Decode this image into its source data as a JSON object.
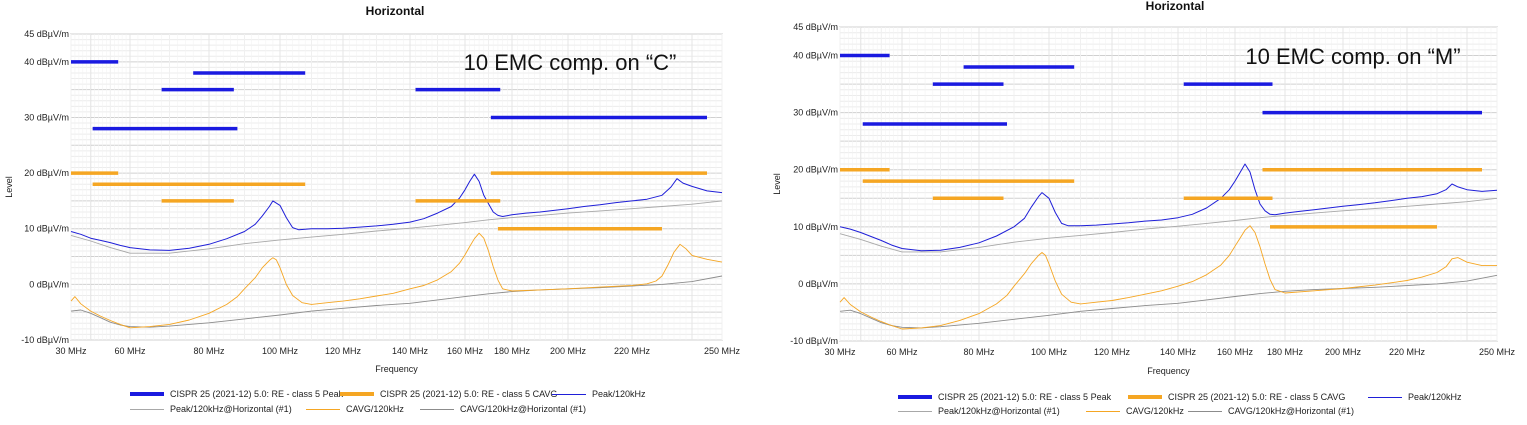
{
  "chart_data": [
    {
      "type": "line",
      "title": "Horizontal",
      "annotation": "10 EMC comp. on “C”",
      "xlabel": "Frequency",
      "ylabel": "Level",
      "xlim": [
        30,
        250
      ],
      "ylim": [
        -10,
        45
      ],
      "x_ticks": [
        "30 MHz",
        "60 MHz",
        "80 MHz",
        "100 MHz",
        "120 MHz",
        "140 MHz",
        "160 MHz",
        "180 MHz",
        "200 MHz",
        "220 MHz",
        "250 MHz"
      ],
      "y_ticks": [
        "45 dBµV/m",
        "40 dBµV/m",
        "30 dBµV/m",
        "20 dBµV/m",
        "10 dBµV/m",
        "0 dBµV/m",
        "-10 dBµV/m"
      ],
      "grid": true,
      "legend_position": "bottom",
      "limit_lines": {
        "peak": [
          {
            "x": [
              30,
              54
            ],
            "y": 40
          },
          {
            "x": [
              41,
              88
            ],
            "y": 28
          },
          {
            "x": [
              68,
              87
            ],
            "y": 35
          },
          {
            "x": [
              76,
              108
            ],
            "y": 38
          },
          {
            "x": [
              142,
              175
            ],
            "y": 35
          },
          {
            "x": [
              171,
              245
            ],
            "y": 30
          }
        ],
        "cavg": [
          {
            "x": [
              30,
              54
            ],
            "y": 20
          },
          {
            "x": [
              41,
              108
            ],
            "y": 18
          },
          {
            "x": [
              68,
              87
            ],
            "y": 15
          },
          {
            "x": [
              142,
              175
            ],
            "y": 15
          },
          {
            "x": [
              171,
              245
            ],
            "y": 20
          },
          {
            "x": [
              174,
              230
            ],
            "y": 10
          }
        ]
      },
      "series": [
        {
          "name": "Peak/120kHz",
          "color": "#1f1fd8",
          "x": [
            30,
            35,
            40,
            45,
            50,
            55,
            60,
            65,
            70,
            75,
            80,
            85,
            90,
            93,
            95,
            97,
            98,
            100,
            102,
            104,
            106,
            110,
            115,
            120,
            125,
            130,
            135,
            140,
            145,
            150,
            155,
            158,
            160,
            162,
            164,
            166,
            168,
            170,
            172,
            174,
            176,
            180,
            185,
            190,
            195,
            200,
            205,
            210,
            215,
            220,
            225,
            230,
            233,
            235,
            237,
            240,
            245,
            250
          ],
          "y": [
            9.5,
            9,
            8.3,
            7.9,
            7.5,
            7,
            6.6,
            6.2,
            6.1,
            6.5,
            7.2,
            8.2,
            9.5,
            10.8,
            12.3,
            14,
            15,
            14.2,
            12,
            10.2,
            9.8,
            10,
            10,
            10.1,
            10.3,
            10.5,
            10.8,
            11.2,
            11.8,
            12.8,
            14,
            15.5,
            17,
            18.5,
            19.8,
            18.5,
            16,
            14.5,
            13,
            12.4,
            12.2,
            12.5,
            12.8,
            13,
            13.3,
            13.6,
            14,
            14.3,
            14.7,
            15,
            15.3,
            16,
            17.5,
            19,
            18.2,
            17.6,
            16.8,
            16.5
          ]
        },
        {
          "name": "Peak/120kHz@Horizontal (#1)",
          "color": "#a8a8a8",
          "x": [
            30,
            40,
            50,
            60,
            70,
            80,
            90,
            100,
            110,
            120,
            130,
            140,
            150,
            160,
            170,
            180,
            190,
            200,
            210,
            220,
            230,
            240,
            250
          ],
          "y": [
            8.8,
            7.8,
            6.6,
            5.6,
            5.6,
            6.4,
            7.3,
            8,
            8.5,
            9,
            9.6,
            10.1,
            10.6,
            11.1,
            11.6,
            12,
            12.4,
            12.8,
            13.2,
            13.6,
            14,
            14.4,
            15
          ]
        },
        {
          "name": "CAVG/120kHz",
          "color": "#f5a623",
          "x": [
            30,
            32,
            35,
            40,
            45,
            50,
            55,
            60,
            65,
            70,
            75,
            80,
            85,
            88,
            90,
            93,
            95,
            97,
            98,
            99,
            100,
            102,
            104,
            107,
            110,
            115,
            120,
            125,
            130,
            135,
            140,
            145,
            150,
            155,
            158,
            160,
            162,
            164,
            166,
            168,
            170,
            172,
            174,
            176,
            180,
            190,
            200,
            210,
            220,
            225,
            228,
            230,
            232,
            234,
            236,
            238,
            240,
            245,
            250
          ],
          "y": [
            -3,
            -2.2,
            -3.5,
            -4.8,
            -5.7,
            -6.5,
            -7.2,
            -7.8,
            -7.6,
            -7.2,
            -6.4,
            -5.2,
            -3.6,
            -2.2,
            -0.8,
            1.2,
            3,
            4.3,
            4.8,
            4.4,
            3,
            0,
            -2,
            -3.3,
            -3.6,
            -3.3,
            -3,
            -2.6,
            -2.1,
            -1.6,
            -0.8,
            -0.2,
            0.8,
            2.3,
            3.8,
            5.3,
            6.8,
            8.2,
            9.2,
            8.3,
            6,
            3.2,
            0.8,
            -0.8,
            -1.2,
            -1,
            -0.8,
            -0.5,
            -0.2,
            0.1,
            0.6,
            1.5,
            3.5,
            5.8,
            7.2,
            6.4,
            5.2,
            4.5,
            4
          ]
        },
        {
          "name": "CAVG/120kHz@Horizontal (#1)",
          "color": "#8c8c8c",
          "x": [
            30,
            35,
            40,
            45,
            50,
            55,
            60,
            65,
            70,
            80,
            90,
            100,
            110,
            120,
            130,
            140,
            150,
            160,
            170,
            180,
            190,
            200,
            210,
            220,
            230,
            240,
            250
          ],
          "y": [
            -4.8,
            -4.6,
            -5.2,
            -6,
            -6.8,
            -7.3,
            -7.6,
            -7.7,
            -7.5,
            -6.9,
            -6.2,
            -5.5,
            -4.8,
            -4.3,
            -3.8,
            -3.4,
            -2.8,
            -2.2,
            -1.7,
            -1.3,
            -1,
            -0.8,
            -0.6,
            -0.3,
            0,
            0.5,
            1.5
          ]
        }
      ],
      "legend": {
        "peak_limit": "CISPR 25 (2021-12) 5.0: RE - class 5 Peak",
        "cavg_limit": "CISPR 25 (2021-12) 5.0: RE - class 5 CAVG",
        "peak": "Peak/120kHz",
        "peak_ref": "Peak/120kHz@Horizontal (#1)",
        "cavg": "CAVG/120kHz",
        "cavg_ref": "CAVG/120kHz@Horizontal (#1)"
      }
    },
    {
      "type": "line",
      "title": "Horizontal",
      "annotation": "10 EMC comp. on “M”",
      "xlabel": "Frequency",
      "ylabel": "Level",
      "xlim": [
        30,
        250
      ],
      "ylim": [
        -10,
        45
      ],
      "x_ticks": [
        "30 MHz",
        "60 MHz",
        "80 MHz",
        "100 MHz",
        "120 MHz",
        "140 MHz",
        "160 MHz",
        "180 MHz",
        "200 MHz",
        "220 MHz",
        "250 MHz"
      ],
      "y_ticks": [
        "45 dBµV/m",
        "40 dBµV/m",
        "30 dBµV/m",
        "20 dBµV/m",
        "10 dBµV/m",
        "0 dBµV/m",
        "-10 dBµV/m"
      ],
      "grid": true,
      "legend_position": "bottom",
      "limit_lines": {
        "peak": [
          {
            "x": [
              30,
              54
            ],
            "y": 40
          },
          {
            "x": [
              41,
              88
            ],
            "y": 28
          },
          {
            "x": [
              68,
              87
            ],
            "y": 35
          },
          {
            "x": [
              76,
              108
            ],
            "y": 38
          },
          {
            "x": [
              142,
              175
            ],
            "y": 35
          },
          {
            "x": [
              171,
              245
            ],
            "y": 30
          }
        ],
        "cavg": [
          {
            "x": [
              30,
              54
            ],
            "y": 20
          },
          {
            "x": [
              41,
              108
            ],
            "y": 18
          },
          {
            "x": [
              68,
              87
            ],
            "y": 15
          },
          {
            "x": [
              142,
              175
            ],
            "y": 15
          },
          {
            "x": [
              171,
              245
            ],
            "y": 20
          },
          {
            "x": [
              174,
              230
            ],
            "y": 10
          }
        ]
      },
      "series": [
        {
          "name": "Peak/120kHz",
          "color": "#1f1fd8",
          "x": [
            30,
            35,
            40,
            45,
            50,
            55,
            60,
            65,
            70,
            75,
            80,
            85,
            90,
            93,
            95,
            97,
            98,
            100,
            102,
            104,
            106,
            110,
            115,
            120,
            125,
            130,
            135,
            140,
            145,
            150,
            155,
            158,
            160,
            162,
            164,
            166,
            168,
            170,
            172,
            174,
            176,
            180,
            185,
            190,
            195,
            200,
            205,
            210,
            215,
            220,
            225,
            230,
            233,
            235,
            237,
            240,
            245,
            250
          ],
          "y": [
            10,
            9.6,
            9,
            8.3,
            7.6,
            6.8,
            6.2,
            5.8,
            5.9,
            6.4,
            7.2,
            8.4,
            10,
            11.5,
            13.5,
            15.3,
            16,
            15,
            12.5,
            10.6,
            10.2,
            10.2,
            10.3,
            10.5,
            10.7,
            11,
            11.2,
            11.6,
            12.2,
            13.3,
            15,
            16.5,
            18,
            19.5,
            21,
            19.6,
            16.5,
            14,
            12.8,
            12.2,
            12.1,
            12.4,
            12.7,
            13,
            13.3,
            13.6,
            13.9,
            14.2,
            14.6,
            15,
            15.3,
            15.8,
            16.5,
            17.5,
            17,
            16.5,
            16.2,
            16.4
          ]
        },
        {
          "name": "Peak/120kHz@Horizontal (#1)",
          "color": "#a8a8a8",
          "x": [
            30,
            40,
            50,
            60,
            70,
            80,
            90,
            100,
            110,
            120,
            130,
            140,
            150,
            160,
            170,
            180,
            190,
            200,
            210,
            220,
            230,
            240,
            250
          ],
          "y": [
            8.8,
            7.8,
            6.6,
            5.6,
            5.6,
            6.4,
            7.3,
            8,
            8.5,
            9,
            9.6,
            10.1,
            10.6,
            11.1,
            11.6,
            12,
            12.4,
            12.8,
            13.2,
            13.6,
            14,
            14.4,
            15
          ]
        },
        {
          "name": "CAVG/120kHz",
          "color": "#f5a623",
          "x": [
            30,
            32,
            35,
            40,
            45,
            50,
            55,
            60,
            65,
            70,
            75,
            80,
            85,
            88,
            90,
            93,
            95,
            97,
            98,
            99,
            100,
            102,
            104,
            107,
            110,
            115,
            120,
            125,
            130,
            135,
            140,
            145,
            150,
            155,
            158,
            160,
            162,
            164,
            166,
            168,
            170,
            172,
            174,
            176,
            180,
            190,
            200,
            210,
            220,
            225,
            230,
            233,
            235,
            237,
            240,
            245,
            250
          ],
          "y": [
            -3.2,
            -2.4,
            -3.6,
            -4.9,
            -5.8,
            -6.6,
            -7.3,
            -7.9,
            -7.7,
            -7.3,
            -6.4,
            -5.2,
            -3.5,
            -2,
            -0.4,
            1.8,
            3.6,
            5,
            5.5,
            5,
            3.5,
            0.5,
            -1.8,
            -3.2,
            -3.5,
            -3.2,
            -2.9,
            -2.4,
            -1.8,
            -1.2,
            -0.4,
            0.4,
            1.6,
            3.3,
            5,
            6.6,
            8,
            9.4,
            10.2,
            9,
            6.5,
            3.5,
            0.8,
            -1,
            -1.6,
            -1.2,
            -0.8,
            -0.2,
            0.6,
            1.2,
            2,
            3,
            4.4,
            4.6,
            3.8,
            3.2,
            3.2
          ]
        },
        {
          "name": "CAVG/120kHz@Horizontal (#1)",
          "color": "#8c8c8c",
          "x": [
            30,
            35,
            40,
            45,
            50,
            55,
            60,
            65,
            70,
            80,
            90,
            100,
            110,
            120,
            130,
            140,
            150,
            160,
            170,
            180,
            190,
            200,
            210,
            220,
            230,
            240,
            250
          ],
          "y": [
            -4.8,
            -4.6,
            -5.2,
            -6,
            -6.8,
            -7.3,
            -7.6,
            -7.7,
            -7.5,
            -6.9,
            -6.2,
            -5.5,
            -4.8,
            -4.3,
            -3.8,
            -3.4,
            -2.8,
            -2.2,
            -1.7,
            -1.3,
            -1,
            -0.8,
            -0.6,
            -0.3,
            0,
            0.5,
            1.5
          ]
        }
      ],
      "legend": {
        "peak_limit": "CISPR 25 (2021-12) 5.0: RE - class 5 Peak",
        "cavg_limit": "CISPR 25 (2021-12) 5.0: RE - class 5 CAVG",
        "peak": "Peak/120kHz",
        "peak_ref": "Peak/120kHz@Horizontal (#1)",
        "cavg": "CAVG/120kHz",
        "cavg_ref": "CAVG/120kHz@Horizontal (#1)"
      }
    }
  ]
}
